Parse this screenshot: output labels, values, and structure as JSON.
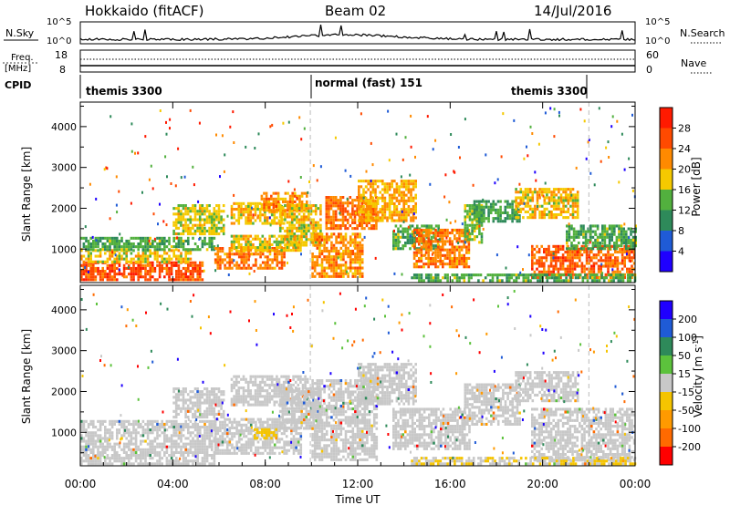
{
  "header": {
    "station": "Hokkaido (fitACF)",
    "beam": "Beam 02",
    "date": "14/Jul/2016"
  },
  "sky_panel": {
    "left_label": "N.Sky",
    "right_label": "N.Search",
    "y_ticks_left": [
      "10^5",
      "10^0"
    ],
    "y_ticks_right": [
      "10^5",
      "10^0"
    ]
  },
  "freq_panel": {
    "label_line1": "Freq.",
    "label_line2": "[MHz]",
    "y_ticks_left": [
      "18",
      "8"
    ],
    "right_label": "Nave",
    "y_ticks_right": [
      "60",
      "0"
    ]
  },
  "cpid": {
    "label": "CPID",
    "segments": [
      {
        "start_hour": 0.0,
        "end_hour": 9.95,
        "text": "themis 3300"
      },
      {
        "start_hour": 9.95,
        "end_hour": 22.0,
        "text": "normal (fast) 151"
      },
      {
        "start_hour": 22.0,
        "end_hour": 24.0,
        "text": "themis 3300"
      }
    ]
  },
  "axes": {
    "xlabel": "Time UT",
    "x_ticks": [
      "00:00",
      "04:00",
      "08:00",
      "12:00",
      "16:00",
      "20:00",
      "00:00"
    ],
    "xlim_hours": [
      0,
      24
    ],
    "ylabel": "Slant Range [km]",
    "ylim_km": [
      180,
      4600
    ],
    "y_ticks": [
      "1000",
      "2000",
      "3000",
      "4000"
    ]
  },
  "chart_data": [
    {
      "type": "heatmap",
      "quantity": "Power",
      "colorbar_label": "Power [dB]",
      "colorbar_ticks": [
        "4",
        "8",
        "12",
        "16",
        "20",
        "24",
        "28"
      ],
      "scale": {
        "min": 0,
        "max": 32
      },
      "colors": [
        "#1f00ff",
        "#1f5bd6",
        "#2e8a5a",
        "#52b03e",
        "#f5c900",
        "#ff8a00",
        "#ff4a00",
        "#ff1a00"
      ],
      "regions": [
        {
          "t0": 0.0,
          "t1": 5.3,
          "r0": 250,
          "r1": 700,
          "val": 26
        },
        {
          "t0": 0.0,
          "t1": 4.8,
          "r0": 700,
          "r1": 1000,
          "val": 18
        },
        {
          "t0": 0.0,
          "t1": 5.8,
          "r0": 1000,
          "r1": 1300,
          "val": 13
        },
        {
          "t0": 4.0,
          "t1": 6.2,
          "r0": 1400,
          "r1": 2100,
          "val": 17
        },
        {
          "t0": 5.8,
          "t1": 8.8,
          "r0": 500,
          "r1": 1050,
          "val": 23
        },
        {
          "t0": 6.5,
          "t1": 9.5,
          "r0": 1000,
          "r1": 1350,
          "val": 18
        },
        {
          "t0": 6.5,
          "t1": 8.8,
          "r0": 1650,
          "r1": 2150,
          "val": 19
        },
        {
          "t0": 7.8,
          "t1": 9.8,
          "r0": 1950,
          "r1": 2400,
          "val": 22
        },
        {
          "t0": 8.6,
          "t1": 10.4,
          "r0": 1100,
          "r1": 2100,
          "val": 18
        },
        {
          "t0": 10.0,
          "t1": 12.2,
          "r0": 300,
          "r1": 1400,
          "val": 22
        },
        {
          "t0": 10.6,
          "t1": 12.8,
          "r0": 1500,
          "r1": 2300,
          "val": 24
        },
        {
          "t0": 12.0,
          "t1": 14.5,
          "r0": 1700,
          "r1": 2700,
          "val": 20
        },
        {
          "t0": 13.5,
          "t1": 15.5,
          "r0": 1000,
          "r1": 1600,
          "val": 13
        },
        {
          "t0": 14.4,
          "t1": 16.8,
          "r0": 600,
          "r1": 1500,
          "val": 23
        },
        {
          "t0": 16.6,
          "t1": 17.4,
          "r0": 1200,
          "r1": 2100,
          "val": 15
        },
        {
          "t0": 17.0,
          "t1": 19.0,
          "r0": 1700,
          "r1": 2200,
          "val": 12
        },
        {
          "t0": 18.8,
          "t1": 21.5,
          "r0": 1800,
          "r1": 2500,
          "val": 19
        },
        {
          "t0": 19.5,
          "t1": 24.0,
          "r0": 300,
          "r1": 1100,
          "val": 25
        },
        {
          "t0": 21.0,
          "t1": 24.0,
          "r0": 1000,
          "r1": 1600,
          "val": 13
        },
        {
          "t0": 14.3,
          "t1": 24.0,
          "r0": 200,
          "r1": 400,
          "val": 13
        }
      ]
    },
    {
      "type": "heatmap",
      "quantity": "Velocity",
      "colorbar_label": "Velocity [m s^-1]",
      "colorbar_ticks": [
        "200",
        "100",
        "50",
        "15",
        "-15",
        "-50",
        "-100",
        "-200"
      ],
      "scale": {
        "min": -250,
        "max": 250
      },
      "colors": [
        "#ff0000",
        "#ff6a00",
        "#ff9a00",
        "#f5c400",
        "#c8c8c8",
        "#5cc23c",
        "#2e8a5a",
        "#1f5bd6",
        "#1f00ff"
      ],
      "regions": [
        {
          "t0": 0.0,
          "t1": 5.8,
          "r0": 200,
          "r1": 1300,
          "val": 0
        },
        {
          "t0": 4.0,
          "t1": 6.2,
          "r0": 1400,
          "r1": 2100,
          "val": 0
        },
        {
          "t0": 5.8,
          "t1": 9.5,
          "r0": 500,
          "r1": 1350,
          "val": 0
        },
        {
          "t0": 7.5,
          "t1": 8.5,
          "r0": 850,
          "r1": 1100,
          "val": -60
        },
        {
          "t0": 6.5,
          "t1": 9.8,
          "r0": 1650,
          "r1": 2400,
          "val": 0
        },
        {
          "t0": 8.6,
          "t1": 10.4,
          "r0": 1100,
          "r1": 2100,
          "val": 0
        },
        {
          "t0": 10.0,
          "t1": 12.8,
          "r0": 300,
          "r1": 2300,
          "val": 0
        },
        {
          "t0": 12.0,
          "t1": 14.5,
          "r0": 1700,
          "r1": 2700,
          "val": 0
        },
        {
          "t0": 13.5,
          "t1": 16.8,
          "r0": 600,
          "r1": 1600,
          "val": 0
        },
        {
          "t0": 16.6,
          "t1": 19.0,
          "r0": 1200,
          "r1": 2200,
          "val": 0
        },
        {
          "t0": 18.8,
          "t1": 21.5,
          "r0": 1800,
          "r1": 2500,
          "val": 0
        },
        {
          "t0": 19.5,
          "t1": 24.0,
          "r0": 300,
          "r1": 1600,
          "val": 0
        },
        {
          "t0": 14.3,
          "t1": 24.0,
          "r0": 200,
          "r1": 400,
          "val": -25
        }
      ]
    }
  ]
}
